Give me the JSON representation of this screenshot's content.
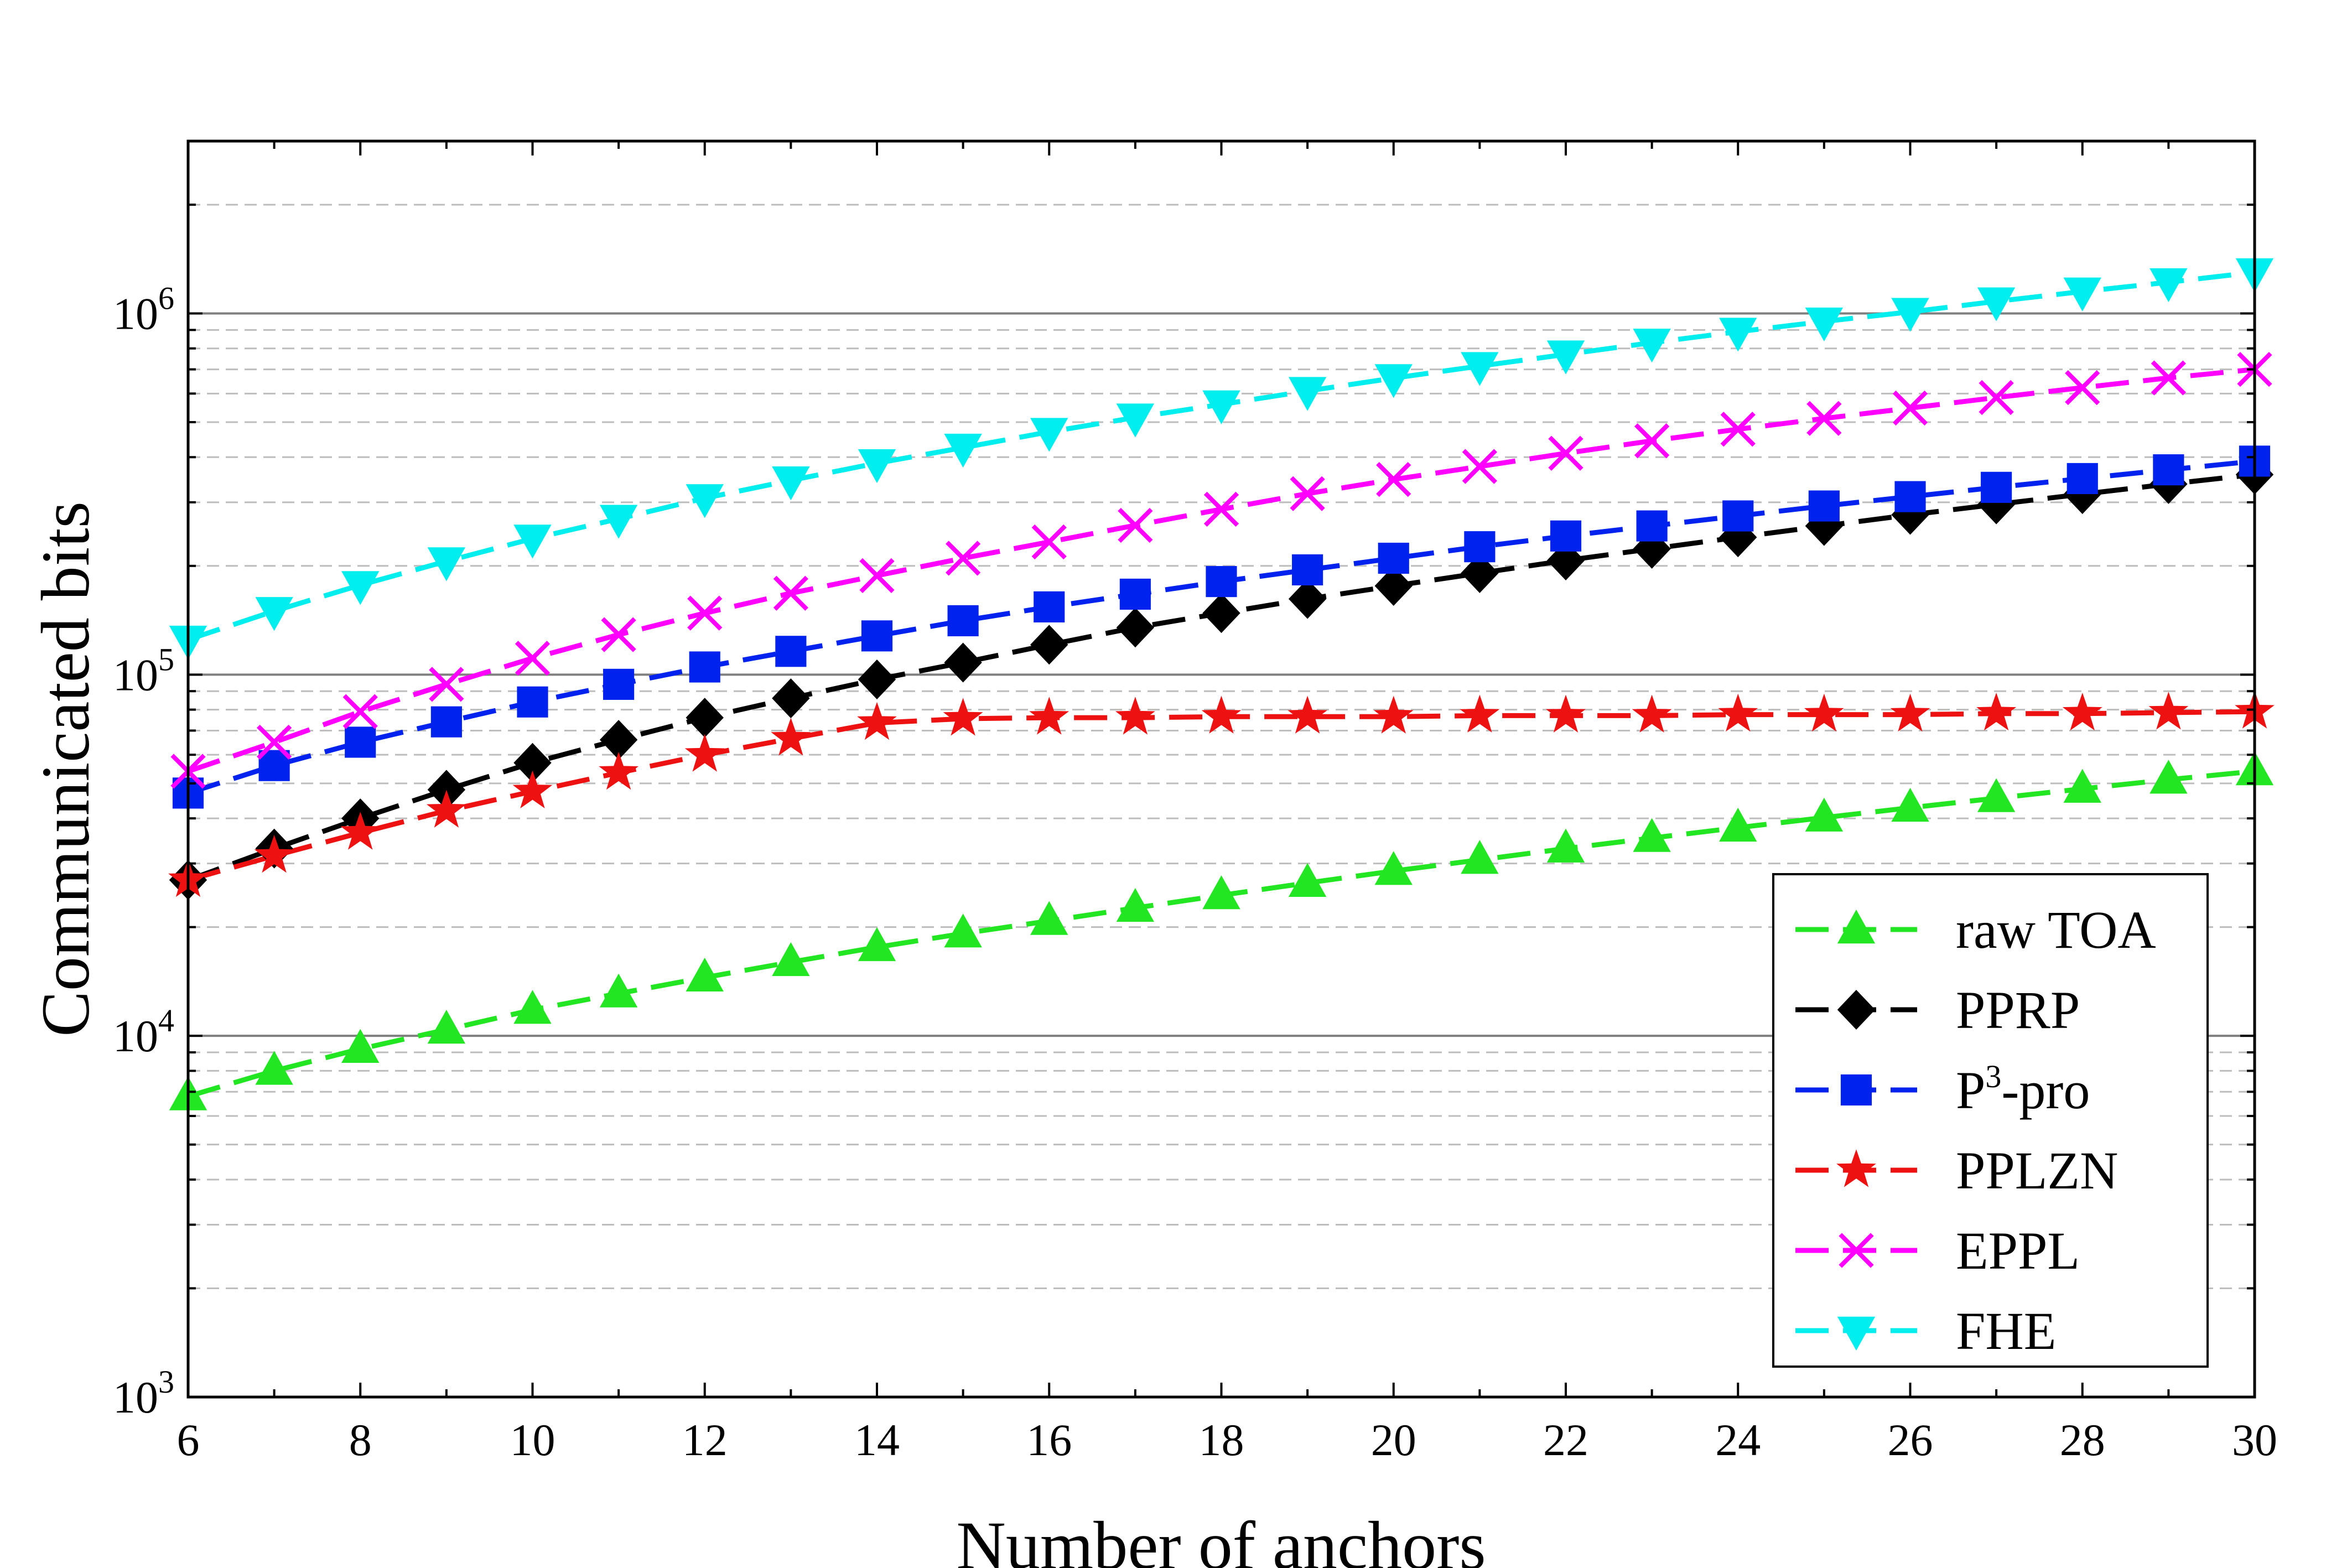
{
  "chart_data": {
    "type": "line",
    "title": "",
    "xlabel": "Number of anchors",
    "ylabel": "Communicated bits",
    "xlim": [
      6,
      30
    ],
    "ylim": [
      1000,
      3000000
    ],
    "yscale": "log",
    "grid": true,
    "legend_position": "bottom-right",
    "x": [
      6,
      7,
      8,
      9,
      10,
      11,
      12,
      13,
      14,
      15,
      16,
      17,
      18,
      19,
      20,
      21,
      22,
      23,
      24,
      25,
      26,
      27,
      28,
      29,
      30
    ],
    "x_ticks": [
      {
        "value": 6,
        "label": "6"
      },
      {
        "value": 8,
        "label": "8"
      },
      {
        "value": 10,
        "label": "10"
      },
      {
        "value": 12,
        "label": "12"
      },
      {
        "value": 14,
        "label": "14"
      },
      {
        "value": 16,
        "label": "16"
      },
      {
        "value": 18,
        "label": "18"
      },
      {
        "value": 20,
        "label": "20"
      },
      {
        "value": 22,
        "label": "22"
      },
      {
        "value": 24,
        "label": "24"
      },
      {
        "value": 26,
        "label": "26"
      },
      {
        "value": 28,
        "label": "28"
      },
      {
        "value": 30,
        "label": "30"
      }
    ],
    "y_ticks": [
      {
        "value": 1000,
        "base": "10",
        "exp": "3"
      },
      {
        "value": 10000,
        "base": "10",
        "exp": "4"
      },
      {
        "value": 100000,
        "base": "10",
        "exp": "5"
      },
      {
        "value": 1000000,
        "base": "10",
        "exp": "6"
      }
    ],
    "series": [
      {
        "name": "raw TOA",
        "color": "#22e622",
        "marker": "triangle-up",
        "values": [
          6800,
          8000,
          9200,
          10400,
          11800,
          13100,
          14500,
          16000,
          17600,
          19200,
          20800,
          22600,
          24500,
          26500,
          28600,
          30700,
          33000,
          35300,
          37700,
          40200,
          42800,
          45500,
          48300,
          51200,
          54000
        ]
      },
      {
        "name": "PPRP",
        "color": "#000000",
        "marker": "diamond",
        "values": [
          27000,
          33000,
          40000,
          48000,
          57000,
          66000,
          76000,
          86000,
          97000,
          108000,
          121000,
          135000,
          148000,
          162000,
          176000,
          191000,
          207000,
          223000,
          240000,
          258000,
          277000,
          296000,
          316000,
          337000,
          358000
        ]
      },
      {
        "name": "P3-pro",
        "name_base": "P",
        "name_sup": "3",
        "name_rest": "-pro",
        "color": "#0022ee",
        "marker": "square",
        "values": [
          47000,
          56000,
          65000,
          74000,
          84000,
          94000,
          105000,
          116000,
          128000,
          141000,
          154000,
          167000,
          181000,
          195000,
          210000,
          226000,
          242000,
          258000,
          275000,
          293000,
          311000,
          330000,
          349000,
          369000,
          390000
        ]
      },
      {
        "name": "PPLZN",
        "color": "#ee1111",
        "marker": "star",
        "values": [
          27000,
          31500,
          36500,
          42000,
          47500,
          53500,
          60000,
          66500,
          73500,
          75500,
          76000,
          76000,
          76500,
          76500,
          76500,
          77000,
          77000,
          77000,
          77500,
          77500,
          77500,
          78000,
          78000,
          78500,
          79000
        ]
      },
      {
        "name": "EPPL",
        "color": "#ff00ff",
        "marker": "x",
        "values": [
          54000,
          65000,
          79000,
          94000,
          111000,
          129000,
          148000,
          168000,
          188000,
          210000,
          233000,
          259000,
          287000,
          317000,
          347000,
          377000,
          410000,
          444000,
          478000,
          512000,
          547000,
          585000,
          623000,
          663000,
          700000
        ]
      },
      {
        "name": "FHE",
        "color": "#00eeee",
        "marker": "triangle-down",
        "values": [
          125000,
          150000,
          177000,
          206000,
          238000,
          270000,
          308000,
          345000,
          385000,
          425000,
          470000,
          515000,
          560000,
          610000,
          662000,
          715000,
          770000,
          830000,
          890000,
          950000,
          1010000,
          1080000,
          1150000,
          1220000,
          1300000
        ]
      }
    ]
  }
}
